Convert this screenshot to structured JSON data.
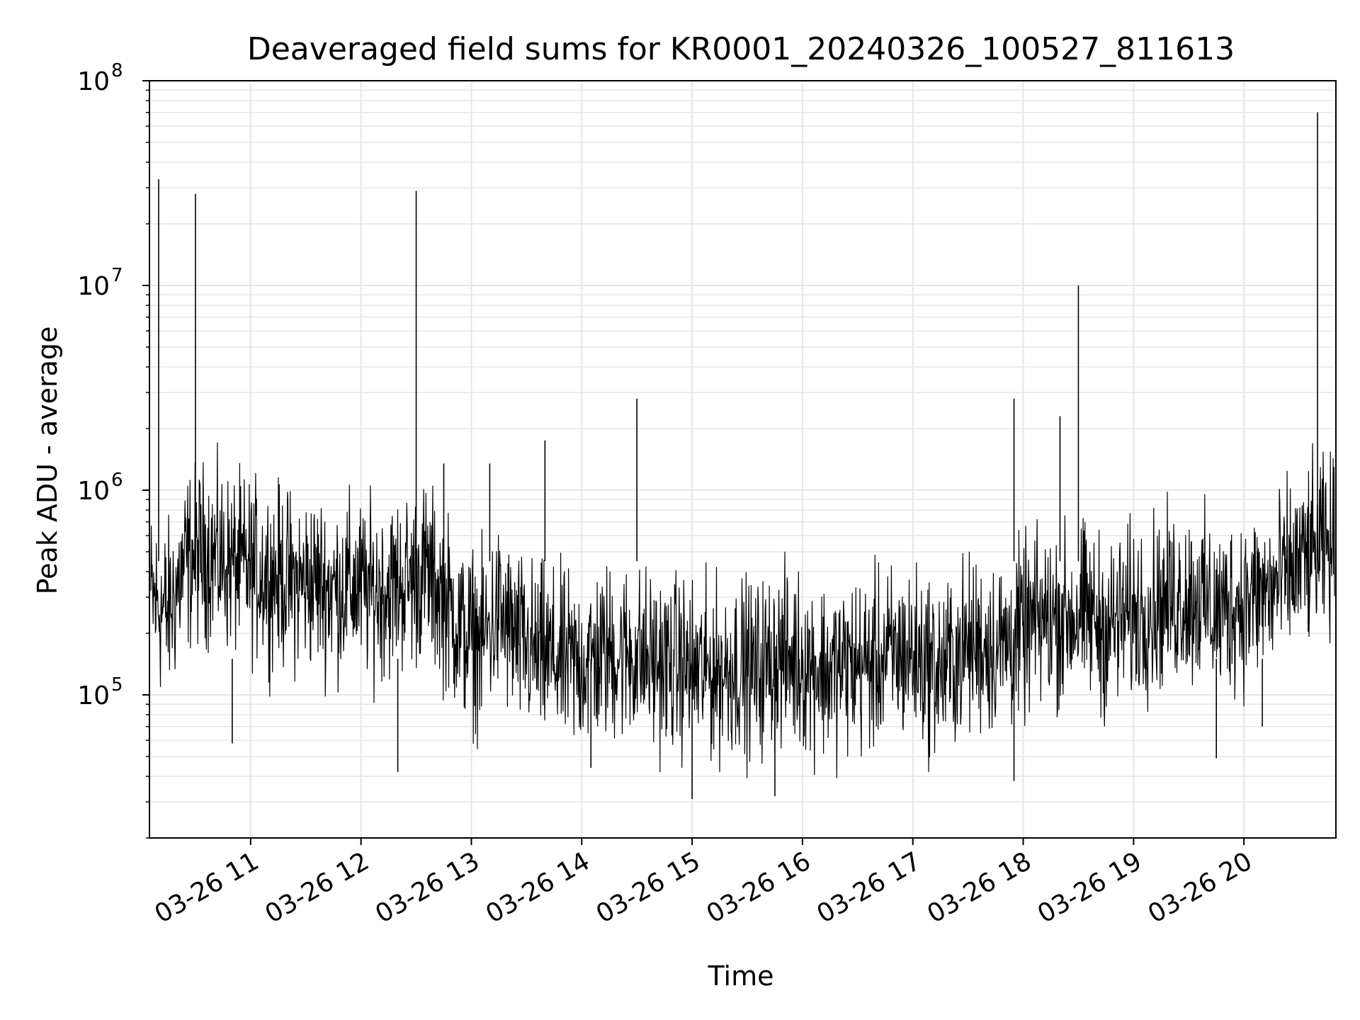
{
  "chart_data": {
    "type": "line",
    "title": "Deaveraged field sums for KR0001_20240326_100527_811613",
    "xlabel": "Time",
    "ylabel": "Peak ADU - average",
    "yscale": "log",
    "ylim": [
      20000,
      100000000
    ],
    "xlim": [
      "2024-03-26 10:05",
      "2024-03-26 20:50"
    ],
    "grid": true,
    "x_tick_labels": [
      "03-26 11",
      "03-26 12",
      "03-26 13",
      "03-26 14",
      "03-26 15",
      "03-26 16",
      "03-26 17",
      "03-26 18",
      "03-26 19",
      "03-26 20"
    ],
    "y_tick_labels": [
      {
        "base": "10",
        "exp": "5"
      },
      {
        "base": "10",
        "exp": "6"
      },
      {
        "base": "10",
        "exp": "7"
      },
      {
        "base": "10",
        "exp": "8"
      }
    ],
    "series": [
      {
        "color": "#000000",
        "x": [
          "2024-03-26 10:05",
          "2024-03-26 10:15",
          "2024-03-26 10:25",
          "2024-03-26 10:35",
          "2024-03-26 10:45",
          "2024-03-26 10:55",
          "2024-03-26 11:05",
          "2024-03-26 11:15",
          "2024-03-26 11:25",
          "2024-03-26 11:35",
          "2024-03-26 11:45",
          "2024-03-26 11:55",
          "2024-03-26 12:05",
          "2024-03-26 12:15",
          "2024-03-26 12:25",
          "2024-03-26 12:35",
          "2024-03-26 12:45",
          "2024-03-26 12:55",
          "2024-03-26 13:05",
          "2024-03-26 13:15",
          "2024-03-26 13:25",
          "2024-03-26 13:35",
          "2024-03-26 13:45",
          "2024-03-26 13:55",
          "2024-03-26 14:05",
          "2024-03-26 14:15",
          "2024-03-26 14:25",
          "2024-03-26 14:35",
          "2024-03-26 14:45",
          "2024-03-26 14:55",
          "2024-03-26 15:05",
          "2024-03-26 15:15",
          "2024-03-26 15:25",
          "2024-03-26 15:35",
          "2024-03-26 15:45",
          "2024-03-26 15:55",
          "2024-03-26 16:05",
          "2024-03-26 16:15",
          "2024-03-26 16:25",
          "2024-03-26 16:35",
          "2024-03-26 16:45",
          "2024-03-26 16:55",
          "2024-03-26 17:05",
          "2024-03-26 17:15",
          "2024-03-26 17:25",
          "2024-03-26 17:35",
          "2024-03-26 17:45",
          "2024-03-26 17:55",
          "2024-03-26 18:05",
          "2024-03-26 18:15",
          "2024-03-26 18:25",
          "2024-03-26 18:35",
          "2024-03-26 18:45",
          "2024-03-26 18:55",
          "2024-03-26 19:05",
          "2024-03-26 19:15",
          "2024-03-26 19:25",
          "2024-03-26 19:35",
          "2024-03-26 19:45",
          "2024-03-26 19:55",
          "2024-03-26 20:05",
          "2024-03-26 20:15",
          "2024-03-26 20:25",
          "2024-03-26 20:35",
          "2024-03-26 20:45"
        ],
        "y": [
          300000,
          250000,
          450000,
          500000,
          450000,
          420000,
          400000,
          380000,
          350000,
          360000,
          330000,
          340000,
          320000,
          330000,
          360000,
          400000,
          300000,
          200000,
          180000,
          250000,
          180000,
          160000,
          150000,
          140000,
          150000,
          160000,
          160000,
          150000,
          140000,
          140000,
          130000,
          130000,
          140000,
          130000,
          150000,
          150000,
          140000,
          130000,
          140000,
          140000,
          150000,
          160000,
          150000,
          130000,
          160000,
          180000,
          170000,
          190000,
          220000,
          240000,
          240000,
          250000,
          210000,
          240000,
          260000,
          280000,
          300000,
          300000,
          250000,
          280000,
          300000,
          320000,
          400000,
          470000,
          520000
        ]
      }
    ],
    "spikes": [
      {
        "x": "2024-03-26 10:10",
        "y": 33000000
      },
      {
        "x": "2024-03-26 10:30",
        "y": 28000000
      },
      {
        "x": "2024-03-26 12:30",
        "y": 29000000
      },
      {
        "x": "2024-03-26 12:45",
        "y": 1350000
      },
      {
        "x": "2024-03-26 13:10",
        "y": 1350000
      },
      {
        "x": "2024-03-26 13:40",
        "y": 1750000
      },
      {
        "x": "2024-03-26 14:30",
        "y": 2800000
      },
      {
        "x": "2024-03-26 17:55",
        "y": 2800000
      },
      {
        "x": "2024-03-26 18:20",
        "y": 2300000
      },
      {
        "x": "2024-03-26 18:30",
        "y": 10000000
      },
      {
        "x": "2024-03-26 20:40",
        "y": 70000000
      }
    ],
    "dips": [
      {
        "x": "2024-03-26 10:50",
        "y": 58000
      },
      {
        "x": "2024-03-26 12:20",
        "y": 42000
      },
      {
        "x": "2024-03-26 14:05",
        "y": 44000
      },
      {
        "x": "2024-03-26 15:00",
        "y": 31000
      },
      {
        "x": "2024-03-26 15:45",
        "y": 32000
      },
      {
        "x": "2024-03-26 17:55",
        "y": 38000
      },
      {
        "x": "2024-03-26 19:45",
        "y": 49000
      },
      {
        "x": "2024-03-26 20:10",
        "y": 70000
      }
    ]
  }
}
